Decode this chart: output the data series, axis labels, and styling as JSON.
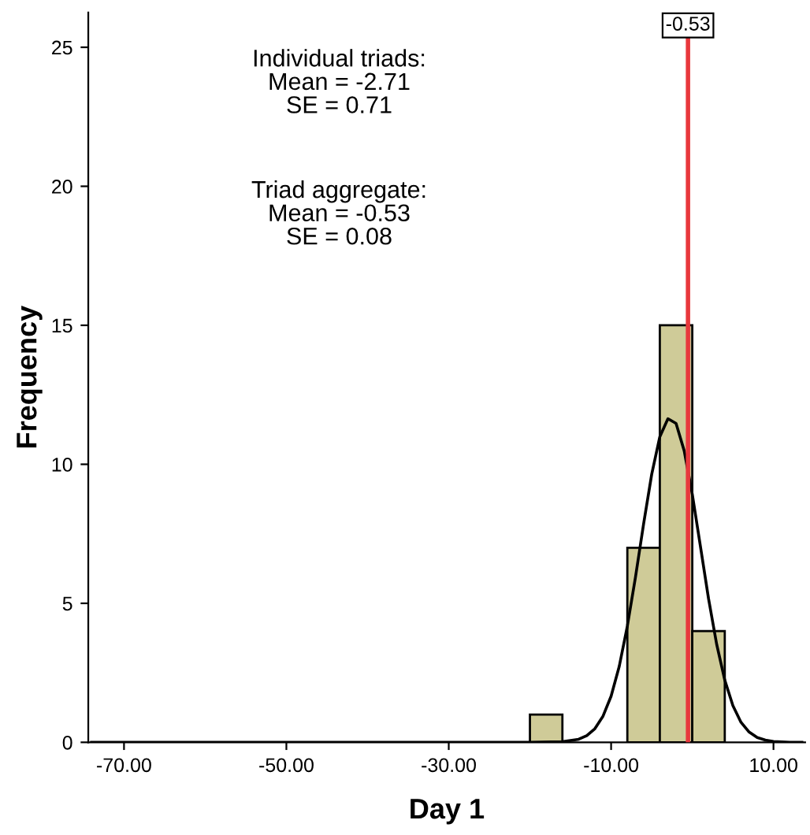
{
  "chart_data": {
    "type": "histogram",
    "xlabel": "Day 1",
    "ylabel": "Frequency",
    "bins": [
      -20,
      -16,
      -12,
      -8,
      -4,
      0,
      4
    ],
    "values": [
      1,
      0,
      0,
      7,
      15,
      4
    ],
    "color": "#cfcb98",
    "series": [
      {
        "type": "line",
        "color": "#000000",
        "x": [
          -74,
          -20,
          -16,
          -14,
          -13,
          -12,
          -11,
          -10,
          -9,
          -8,
          -7,
          -6,
          -5,
          -4,
          -3,
          -2,
          -1,
          0,
          1,
          2,
          3,
          4,
          5,
          6,
          7,
          8,
          9,
          10,
          12,
          13.5
        ],
        "values": [
          0,
          0,
          0.02,
          0.11,
          0.24,
          0.49,
          0.94,
          1.66,
          2.73,
          4.18,
          5.94,
          7.85,
          9.64,
          10.99,
          11.64,
          11.47,
          10.49,
          8.92,
          7.05,
          5.17,
          3.53,
          2.24,
          1.32,
          0.72,
          0.37,
          0.17,
          0.08,
          0.03,
          0,
          0
        ]
      }
    ],
    "ref_lines": [
      {
        "axis": "x",
        "value": -0.53,
        "label": "-0.53",
        "color": "#e8383d"
      }
    ],
    "annotations": [
      "Individual triads:\nMean = -2.71\nSE = 0.71",
      "Triad aggregate:\nMean = -0.53\nSE = 0.08"
    ],
    "xlim": [
      -74.4,
      13.9
    ],
    "ylim": [
      0,
      26.25
    ],
    "xticks": [
      {
        "value": -70,
        "label": "-70.00"
      },
      {
        "value": -50,
        "label": "-50.00"
      },
      {
        "value": -30,
        "label": "-30.00"
      },
      {
        "value": -10,
        "label": "-10.00"
      },
      {
        "value": 10,
        "label": "10.00"
      }
    ],
    "yticks": [
      0,
      5,
      10,
      15,
      20,
      25
    ],
    "grid": false
  }
}
